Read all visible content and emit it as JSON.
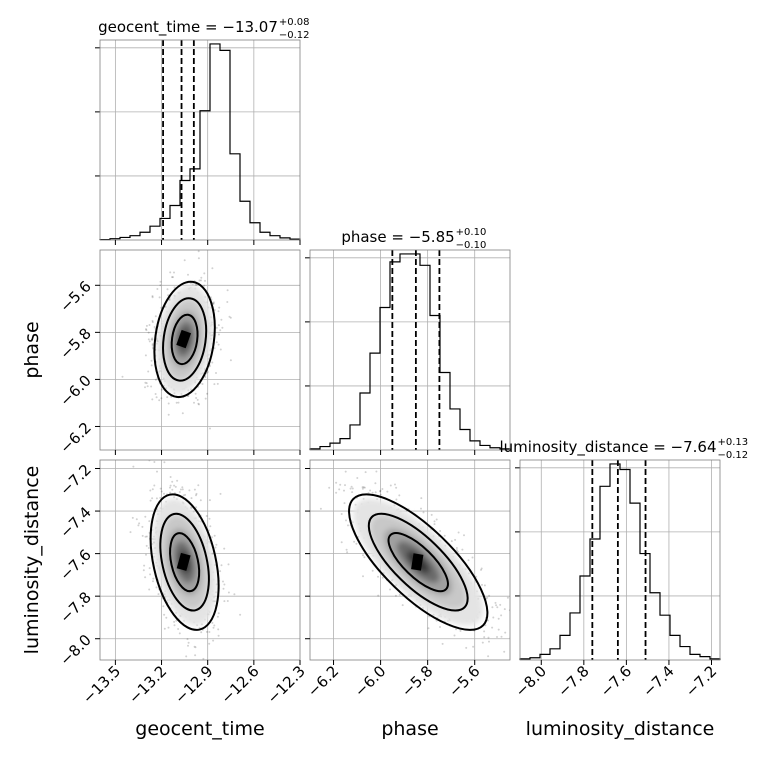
{
  "chart_data": {
    "type": "corner",
    "parameters": [
      "geocent_time",
      "phase",
      "luminosity_distance"
    ],
    "axis_labels": [
      "geocent_time",
      "phase",
      "luminosity_distance"
    ],
    "ranges": [
      [
        -13.6,
        -12.3
      ],
      [
        -6.3,
        -5.45
      ],
      [
        -8.1,
        -7.16
      ]
    ],
    "ticks": [
      [
        -13.5,
        -13.2,
        -12.9,
        -12.6,
        -12.3
      ],
      [
        -6.2,
        -6.0,
        -5.8,
        -5.6
      ],
      [
        -8.0,
        -7.8,
        -7.6,
        -7.4,
        -7.2
      ]
    ],
    "tick_labels": [
      [
        "−13.5",
        "−13.2",
        "−12.9",
        "−12.6",
        "−12.3"
      ],
      [
        "−6.2",
        "−6.0",
        "−5.8",
        "−5.6"
      ],
      [
        "−8.0",
        "−7.8",
        "−7.6",
        "−7.4",
        "−7.2"
      ]
    ],
    "titles": [
      {
        "text": "geocent_time = −13.07",
        "sup": "+0.08",
        "sub": "−0.12"
      },
      {
        "text": "phase = −5.85",
        "sup": "+0.10",
        "sub": "−0.10"
      },
      {
        "text": "luminosity_distance = −7.64",
        "sup": "+0.13",
        "sub": "−0.12"
      }
    ],
    "quantiles": [
      [
        -13.19,
        -13.07,
        -12.99
      ],
      [
        -5.95,
        -5.85,
        -5.75
      ],
      [
        -7.76,
        -7.64,
        -7.51
      ]
    ],
    "histograms": [
      {
        "bin_start": -13.6,
        "bin_width": 0.065,
        "counts": [
          1,
          3,
          6,
          10,
          18,
          32,
          50,
          80,
          138,
          165,
          300,
          455,
          440,
          200,
          90,
          40,
          18,
          10,
          5,
          2
        ]
      },
      {
        "bin_start": -6.3,
        "bin_width": 0.0425,
        "counts": [
          1,
          3,
          6,
          10,
          22,
          50,
          85,
          125,
          165,
          172,
          172,
          162,
          118,
          68,
          36,
          18,
          8,
          4,
          2,
          1
        ]
      },
      {
        "bin_start": -8.1,
        "bin_width": 0.047,
        "counts": [
          1,
          2,
          5,
          10,
          22,
          42,
          75,
          108,
          155,
          175,
          170,
          140,
          95,
          60,
          40,
          22,
          12,
          5,
          3,
          1
        ]
      }
    ],
    "pairs": [
      {
        "x": "geocent_time",
        "y": "phase",
        "center": [
          -13.05,
          -5.83
        ],
        "sigma": [
          0.08,
          0.1
        ],
        "correlation": 0.2
      },
      {
        "x": "geocent_time",
        "y": "luminosity_distance",
        "center": [
          -13.05,
          -7.64
        ],
        "sigma": [
          0.09,
          0.13
        ],
        "correlation": -0.35
      },
      {
        "x": "phase",
        "y": "luminosity_distance",
        "center": [
          -5.84,
          -7.64
        ],
        "sigma": [
          0.12,
          0.13
        ],
        "correlation": -0.75
      }
    ],
    "grid": true
  }
}
